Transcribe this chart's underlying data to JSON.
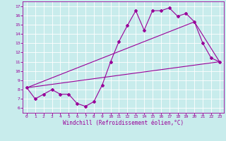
{
  "xlabel": "Windchill (Refroidissement éolien,°C)",
  "ylabel": "",
  "bg_color": "#c8ecec",
  "line_color": "#990099",
  "xlim": [
    -0.5,
    23.5
  ],
  "ylim": [
    5.5,
    17.5
  ],
  "xticks": [
    0,
    1,
    2,
    3,
    4,
    5,
    6,
    7,
    8,
    9,
    10,
    11,
    12,
    13,
    14,
    15,
    16,
    17,
    18,
    19,
    20,
    21,
    22,
    23
  ],
  "yticks": [
    6,
    7,
    8,
    9,
    10,
    11,
    12,
    13,
    14,
    15,
    16,
    17
  ],
  "line1_x": [
    0,
    1,
    2,
    3,
    4,
    5,
    6,
    7,
    8,
    9,
    10,
    11,
    12,
    13,
    14,
    15,
    16,
    17,
    18,
    19,
    20,
    21,
    22,
    23
  ],
  "line1_y": [
    8.2,
    7.0,
    7.5,
    8.0,
    7.5,
    7.5,
    6.5,
    6.2,
    6.7,
    8.5,
    11.0,
    13.2,
    14.9,
    16.5,
    14.4,
    16.5,
    16.5,
    16.8,
    15.9,
    16.2,
    15.3,
    13.0,
    11.4,
    11.0
  ],
  "line2_x": [
    0,
    23
  ],
  "line2_y": [
    8.2,
    11.0
  ],
  "line3_x": [
    0,
    20,
    23
  ],
  "line3_y": [
    8.2,
    15.3,
    11.0
  ],
  "grid_color": "#ffffff",
  "marker": "D",
  "marker_size": 2,
  "tick_fontsize": 4.5,
  "xlabel_fontsize": 5.5,
  "grid_linewidth": 0.6,
  "line_linewidth": 0.8
}
